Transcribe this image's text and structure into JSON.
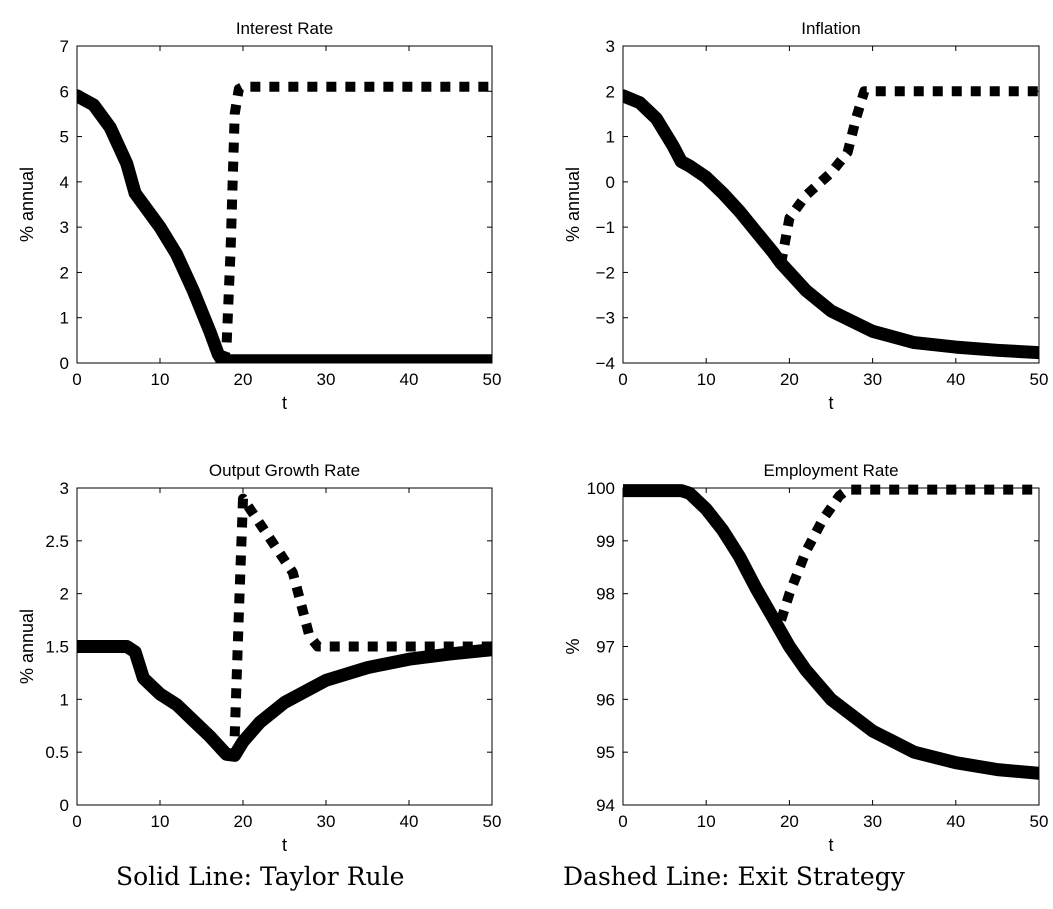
{
  "captions": {
    "solid": "Solid Line: Taylor Rule",
    "dashed": "Dashed Line: Exit Strategy"
  },
  "colors": {
    "line": "#000000",
    "axes": "#000000",
    "background": "#ffffff"
  },
  "chart_data": [
    {
      "type": "line",
      "title": "Interest Rate",
      "xlabel": "t",
      "ylabel": "% annual",
      "xlim": [
        0,
        50
      ],
      "ylim": [
        0,
        7
      ],
      "xticks": [
        0,
        10,
        20,
        30,
        40,
        50
      ],
      "yticks": [
        0,
        1,
        2,
        3,
        4,
        5,
        6,
        7
      ],
      "grid": false,
      "series": [
        {
          "style": "solid",
          "x": [
            0,
            2,
            4,
            6,
            7,
            8,
            10,
            12,
            14,
            16,
            17,
            17.5,
            18,
            20,
            30,
            40,
            50
          ],
          "y": [
            5.9,
            5.7,
            5.2,
            4.4,
            3.75,
            3.5,
            3.0,
            2.4,
            1.6,
            0.7,
            0.2,
            0.05,
            0.05,
            0.05,
            0.05,
            0.05,
            0.05
          ]
        },
        {
          "style": "dashed",
          "x": [
            17.5,
            18,
            18.5,
            19,
            19.5,
            20,
            30,
            40,
            50
          ],
          "y": [
            0.05,
            0.3,
            2.5,
            5.5,
            6.05,
            6.1,
            6.1,
            6.1,
            6.1
          ]
        }
      ]
    },
    {
      "type": "line",
      "title": "Inflation",
      "xlabel": "t",
      "ylabel": "% annual",
      "xlim": [
        0,
        50
      ],
      "ylim": [
        -4,
        3
      ],
      "xticks": [
        0,
        10,
        20,
        30,
        40,
        50
      ],
      "yticks": [
        -4,
        -3,
        -2,
        -1,
        0,
        1,
        2,
        3
      ],
      "grid": false,
      "series": [
        {
          "style": "solid",
          "x": [
            0,
            2,
            4,
            6,
            7,
            8,
            10,
            12,
            14,
            16,
            18,
            19,
            20,
            22,
            25,
            30,
            35,
            40,
            45,
            50
          ],
          "y": [
            1.9,
            1.75,
            1.4,
            0.8,
            0.45,
            0.35,
            0.1,
            -0.25,
            -0.65,
            -1.1,
            -1.55,
            -1.8,
            -2.0,
            -2.4,
            -2.85,
            -3.3,
            -3.55,
            -3.65,
            -3.72,
            -3.77
          ]
        },
        {
          "style": "dashed",
          "x": [
            19,
            20,
            22,
            25,
            27,
            28,
            29,
            30,
            40,
            50
          ],
          "y": [
            -1.8,
            -0.8,
            -0.3,
            0.2,
            0.65,
            1.4,
            2.0,
            2.0,
            2.0,
            2.0
          ]
        }
      ]
    },
    {
      "type": "line",
      "title": "Output Growth Rate",
      "xlabel": "t",
      "ylabel": "% annual",
      "xlim": [
        0,
        50
      ],
      "ylim": [
        0,
        3
      ],
      "xticks": [
        0,
        10,
        20,
        30,
        40,
        50
      ],
      "yticks": [
        0,
        0.5,
        1,
        1.5,
        2,
        2.5,
        3
      ],
      "grid": false,
      "series": [
        {
          "style": "solid",
          "x": [
            0,
            6,
            7,
            8,
            10,
            12,
            14,
            16,
            18,
            19,
            20,
            22,
            25,
            30,
            35,
            40,
            45,
            50
          ],
          "y": [
            1.5,
            1.5,
            1.45,
            1.2,
            1.05,
            0.95,
            0.8,
            0.65,
            0.48,
            0.47,
            0.6,
            0.78,
            0.97,
            1.18,
            1.3,
            1.38,
            1.43,
            1.47
          ]
        },
        {
          "style": "dashed",
          "x": [
            19,
            19.5,
            20,
            23,
            26,
            27,
            28,
            29,
            30,
            40,
            50
          ],
          "y": [
            0.65,
            1.8,
            2.9,
            2.55,
            2.2,
            1.9,
            1.6,
            1.5,
            1.5,
            1.5,
            1.5
          ]
        }
      ]
    },
    {
      "type": "line",
      "title": "Employment Rate",
      "xlabel": "t",
      "ylabel": "%",
      "xlim": [
        0,
        50
      ],
      "ylim": [
        94,
        100
      ],
      "xticks": [
        0,
        10,
        20,
        30,
        40,
        50
      ],
      "yticks": [
        94,
        95,
        96,
        97,
        98,
        99,
        100
      ],
      "grid": false,
      "series": [
        {
          "style": "solid",
          "x": [
            0,
            6,
            7,
            8,
            10,
            12,
            14,
            16,
            18,
            20,
            22,
            25,
            30,
            35,
            40,
            45,
            50
          ],
          "y": [
            99.95,
            99.95,
            99.95,
            99.9,
            99.6,
            99.2,
            98.7,
            98.1,
            97.55,
            97.0,
            96.55,
            96.0,
            95.4,
            95.0,
            94.8,
            94.67,
            94.6
          ]
        },
        {
          "style": "dashed",
          "x": [
            19,
            20,
            22,
            24,
            26,
            27,
            30,
            40,
            50
          ],
          "y": [
            97.5,
            98.0,
            98.8,
            99.4,
            99.85,
            99.97,
            99.97,
            99.97,
            99.97
          ]
        }
      ]
    }
  ]
}
